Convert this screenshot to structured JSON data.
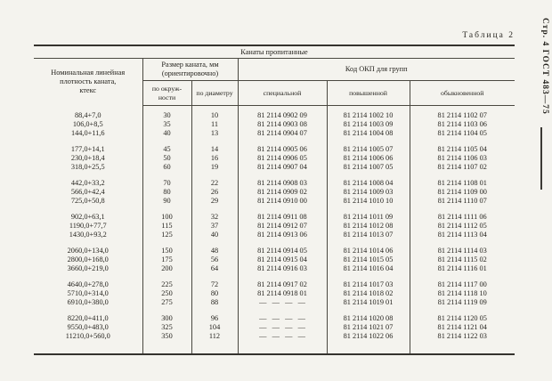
{
  "page": {
    "table_caption": "Таблица 2",
    "margin_note": "Стр. 4 ГОСТ 483—75"
  },
  "colors": {
    "paper": "#f4f3ee",
    "ink": "#26241f",
    "rule": "#4a4840"
  },
  "table": {
    "span_title": "Канаты пропитанные",
    "headers": {
      "density": "Номинальная линейная\nплотность каната,\nктекс",
      "size_group": "Размер каната, мм\n(ориентировочно)",
      "okp_group": "Код ОКП для групп",
      "by_circumference": "по окруж-\nности",
      "by_diameter": "по диаметру",
      "grade_special": "специальной",
      "grade_elevated": "повышенной",
      "grade_ordinary": "обыкновенной"
    },
    "row_groups": [
      [
        [
          "88,4+7,0",
          "30",
          "10",
          "81 2114 0902 09",
          "81 2114 1002 10",
          "81 2114 1102 07"
        ],
        [
          "106,0+8,5",
          "35",
          "11",
          "81 2114 0903 08",
          "81 2114 1003 09",
          "81 2114 1103 06"
        ],
        [
          "144,0+11,6",
          "40",
          "13",
          "81 2114 0904 07",
          "81 2114 1004 08",
          "81 2114 1104 05"
        ]
      ],
      [
        [
          "177,0+14,1",
          "45",
          "14",
          "81 2114 0905 06",
          "81 2114 1005 07",
          "81 2114 1105 04"
        ],
        [
          "230,0+18,4",
          "50",
          "16",
          "81 2114 0906 05",
          "81 2114 1006 06",
          "81 2114 1106 03"
        ],
        [
          "318,0+25,5",
          "60",
          "19",
          "81 2114 0907 04",
          "81 2114 1007 05",
          "81 2114 1107 02"
        ]
      ],
      [
        [
          "442,0+33,2",
          "70",
          "22",
          "81 2114 0908 03",
          "81 2114 1008 04",
          "81 2114 1108 01"
        ],
        [
          "566,0+42,4",
          "80",
          "26",
          "81 2114 0909 02",
          "81 2114 1009 03",
          "81 2114 1109 00"
        ],
        [
          "725,0+50,8",
          "90",
          "29",
          "81 2114 0910 00",
          "81 2114 1010 10",
          "81 2114 1110 07"
        ]
      ],
      [
        [
          "902,0+63,1",
          "100",
          "32",
          "81 2114 0911 08",
          "81 2114 1011 09",
          "81 2114 1111 06"
        ],
        [
          "1190,0+77,7",
          "115",
          "37",
          "81 2114 0912 07",
          "81 2114 1012 08",
          "81 2114 1112 05"
        ],
        [
          "1430,0+93,2",
          "125",
          "40",
          "81 2114 0913 06",
          "81 2114 1013 07",
          "81 2114 1113 04"
        ]
      ],
      [
        [
          "2060,0+134,0",
          "150",
          "48",
          "81 2114 0914 05",
          "81 2114 1014 06",
          "81 2114 1114 03"
        ],
        [
          "2800,0+168,0",
          "175",
          "56",
          "81 2114 0915 04",
          "81 2114 1015 05",
          "81 2114 1115 02"
        ],
        [
          "3660,0+219,0",
          "200",
          "64",
          "81 2114 0916 03",
          "81 2114 1016 04",
          "81 2114 1116 01"
        ]
      ],
      [
        [
          "4640,0+278,0",
          "225",
          "72",
          "81 2114 0917 02",
          "81 2114 1017 03",
          "81 2114 1117 00"
        ],
        [
          "5710,0+314,0",
          "250",
          "80",
          "81 2114 0918 01",
          "81 2114 1018 02",
          "81 2114 1118 10"
        ],
        [
          "6910,0+380,0",
          "275",
          "88",
          "—   —   —   —",
          "81 2114 1019 01",
          "81 2114 1119 09"
        ]
      ],
      [
        [
          "8220,0+411,0",
          "300",
          "96",
          "—   —   —   —",
          "81 2114 1020 08",
          "81 2114 1120 05"
        ],
        [
          "9550,0+483,0",
          "325",
          "104",
          "—   —   —   —",
          "81 2114 1021 07",
          "81 2114 1121 04"
        ],
        [
          "11210,0+560,0",
          "350",
          "112",
          "—   —   —   —",
          "81 2114 1022 06",
          "81 2114 1122 03"
        ]
      ]
    ]
  }
}
